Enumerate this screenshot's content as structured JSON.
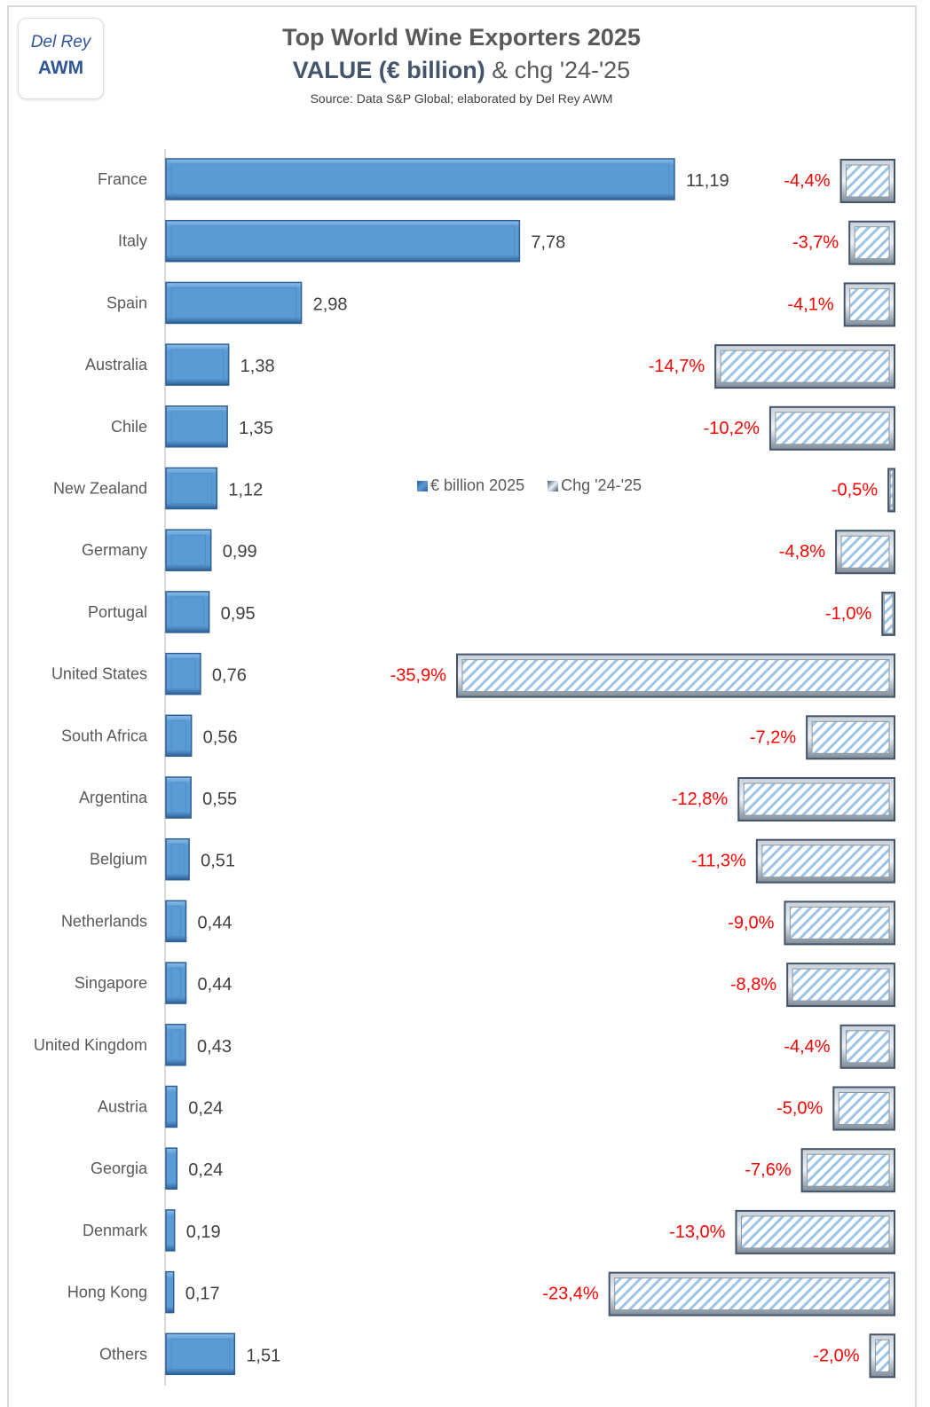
{
  "logo": {
    "line1": "Del Rey",
    "line2": "AWM"
  },
  "header": {
    "title": "Top World Wine Exporters 2025",
    "subtitle_strong": "VALUE (€ billion)",
    "subtitle_rest": " & chg '24-'25",
    "source": "Source: Data S&P Global; elaborated by Del Rey AWM"
  },
  "colors": {
    "value_bar": "#5b9bd5",
    "value_bar_dark": "#2e5f94",
    "change_hatch": "#9dc3e6",
    "change_border": "#44546a",
    "pct_label": "#ff0000"
  },
  "chart_data": {
    "type": "bar",
    "orientation": "horizontal",
    "title": "Top World Wine Exporters 2025",
    "subtitle": "VALUE (€ billion) & chg '24-'25",
    "legend": {
      "position": "center",
      "entries": [
        "€ billion 2025",
        "Chg '24-'25"
      ]
    },
    "categories": [
      "France",
      "Italy",
      "Spain",
      "Australia",
      "Chile",
      "New Zealand",
      "Germany",
      "Portugal",
      "United States",
      "South Africa",
      "Argentina",
      "Belgium",
      "Netherlands",
      "Singapore",
      "United Kingdom",
      "Austria",
      "Georgia",
      "Denmark",
      "Hong Kong",
      "Others"
    ],
    "series": [
      {
        "name": "€ billion 2025",
        "values": [
          11.19,
          7.78,
          2.98,
          1.38,
          1.35,
          1.12,
          0.99,
          0.95,
          0.76,
          0.56,
          0.55,
          0.51,
          0.44,
          0.44,
          0.43,
          0.24,
          0.24,
          0.19,
          0.17,
          1.51
        ],
        "labels": [
          "11,19",
          "7,78",
          "2,98",
          "1,38",
          "1,35",
          "1,12",
          "0,99",
          "0,95",
          "0,76",
          "0,56",
          "0,55",
          "0,51",
          "0,44",
          "0,44",
          "0,43",
          "0,24",
          "0,24",
          "0,19",
          "0,17",
          "1,51"
        ]
      },
      {
        "name": "Chg '24-'25",
        "values": [
          -4.4,
          -3.7,
          -4.1,
          -14.7,
          -10.2,
          -0.5,
          -4.8,
          -1.0,
          -35.9,
          -7.2,
          -12.8,
          -11.3,
          -9.0,
          -8.8,
          -4.4,
          -5.0,
          -7.6,
          -13.0,
          -23.4,
          -2.0
        ],
        "labels": [
          "-4,4%",
          "-3,7%",
          "-4,1%",
          "-14,7%",
          "-10,2%",
          "-0,5%",
          "-4,8%",
          "-1,0%",
          "-35,9%",
          "-7,2%",
          "-12,8%",
          "-11,3%",
          "-9,0%",
          "-8,8%",
          "-4,4%",
          "-5,0%",
          "-7,6%",
          "-13,0%",
          "-23,4%",
          "-2,0%"
        ]
      }
    ],
    "xlim_value": [
      0,
      11.19
    ],
    "xlim_change": [
      -35.9,
      0
    ],
    "grid": false
  }
}
